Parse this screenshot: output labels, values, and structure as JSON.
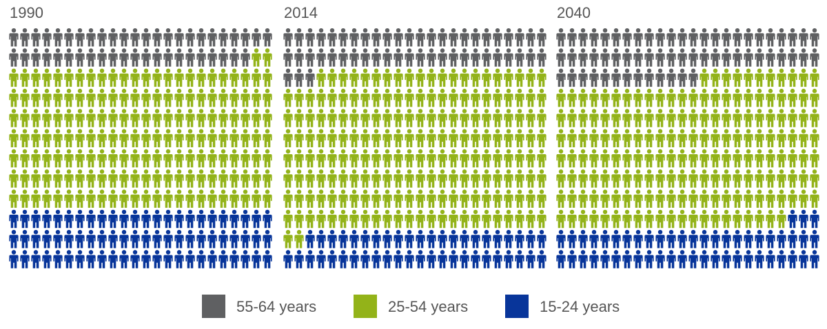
{
  "chart_data": {
    "type": "waffle",
    "unit": "person icon",
    "icons_per_panel": 288,
    "colors": {
      "55-64 years": "#5f6062",
      "25-54 years": "#93b319",
      "15-24 years": "#08359a"
    },
    "panels": [
      {
        "title": "1990",
        "counts": [
          {
            "group": "55-64 years",
            "count": 46
          },
          {
            "group": "25-54 years",
            "count": 170
          },
          {
            "group": "15-24 years",
            "count": 72
          }
        ]
      },
      {
        "title": "2014",
        "counts": [
          {
            "group": "55-64 years",
            "count": 51
          },
          {
            "group": "25-54 years",
            "count": 191
          },
          {
            "group": "15-24 years",
            "count": 46
          }
        ]
      },
      {
        "title": "2040",
        "counts": [
          {
            "group": "55-64 years",
            "count": 61
          },
          {
            "group": "25-54 years",
            "count": 176
          },
          {
            "group": "15-24 years",
            "count": 51
          }
        ]
      }
    ]
  },
  "legend": {
    "items": [
      {
        "label": "55-64 years",
        "color": "#5f6062"
      },
      {
        "label": "25-54 years",
        "color": "#93b319"
      },
      {
        "label": "15-24 years",
        "color": "#08359a"
      }
    ]
  }
}
